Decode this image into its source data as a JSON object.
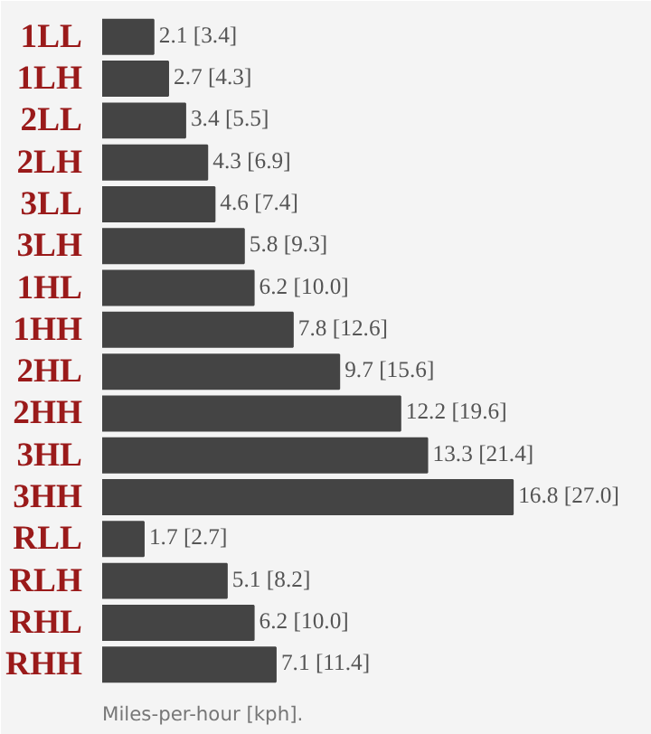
{
  "chart_data": {
    "type": "bar",
    "orientation": "horizontal",
    "categories": [
      "1LL",
      "1LH",
      "2LL",
      "2LH",
      "3LL",
      "3LH",
      "1HL",
      "1HH",
      "2HL",
      "2HH",
      "3HL",
      "3HH",
      "RLL",
      "RLH",
      "RHL",
      "RHH"
    ],
    "values": [
      2.1,
      2.7,
      3.4,
      4.3,
      4.6,
      5.8,
      6.2,
      7.8,
      9.7,
      12.2,
      13.3,
      16.8,
      1.7,
      5.1,
      6.2,
      7.1
    ],
    "color": "#444444",
    "value_labels": [
      "2.1 [3.4]",
      "2.7 [4.3]",
      "3.4 [5.5]",
      "4.3 [6.9]",
      "4.6 [7.4]",
      "5.8 [9.3]",
      "6.2 [10.0]",
      "7.8 [12.6]",
      "9.7 [15.6]",
      "12.2 [19.6]",
      "13.3 [21.4]",
      "16.8 [27.0]",
      "1.7 [2.7]",
      "5.1 [8.2]",
      "6.2 [10.0]",
      "7.1 [11.4]"
    ],
    "annotations": [
      "Miles-per-hour [kph]."
    ]
  }
}
